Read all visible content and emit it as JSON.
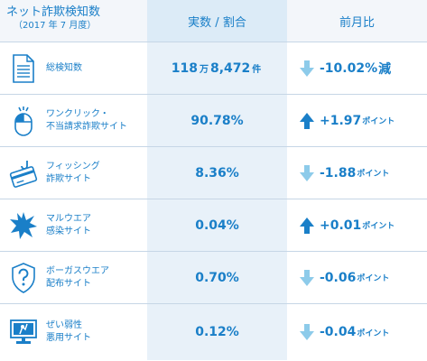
{
  "colors": {
    "accent": "#1a7fc8",
    "arrow_up": "#1a7fc8",
    "arrow_down": "#8dcbea",
    "header_mid": "#dcebf7",
    "value_bg": "#e8f1f9"
  },
  "header": {
    "title": "ネット詐欺検知数",
    "subtitle": "（2017 年 7 月度）",
    "col_value": "実数 / 割合",
    "col_change": "前月比"
  },
  "rows": [
    {
      "icon": "document-icon",
      "label_lines": [
        "総検知数"
      ],
      "value_num1": "118",
      "value_unit1": "万",
      "value_num2": "8,472",
      "value_unit2": "件",
      "direction": "down",
      "change": "-10.02%",
      "change_unit": "減"
    },
    {
      "icon": "mouse-click-icon",
      "label_lines": [
        "ワンクリック・",
        "不当請求詐欺サイト"
      ],
      "value": "90.78%",
      "direction": "up",
      "change": "+1.97",
      "change_unit": "ポイント"
    },
    {
      "icon": "credit-card-hook-icon",
      "label_lines": [
        "フィッシング",
        "詐欺サイト"
      ],
      "value": "8.36%",
      "direction": "down",
      "change": "-1.88",
      "change_unit": "ポイント"
    },
    {
      "icon": "burst-icon",
      "label_lines": [
        "マルウエア",
        "感染サイト"
      ],
      "value": "0.04%",
      "direction": "up",
      "change": "+0.01",
      "change_unit": "ポイント"
    },
    {
      "icon": "question-shield-icon",
      "label_lines": [
        "ボーガスウエア",
        "配布サイト"
      ],
      "value": "0.70%",
      "direction": "down",
      "change": "-0.06",
      "change_unit": "ポイント"
    },
    {
      "icon": "vulnerable-monitor-icon",
      "label_lines": [
        "ぜい弱性",
        "悪用サイト"
      ],
      "value": "0.12%",
      "direction": "down",
      "change": "-0.04",
      "change_unit": "ポイント"
    }
  ]
}
